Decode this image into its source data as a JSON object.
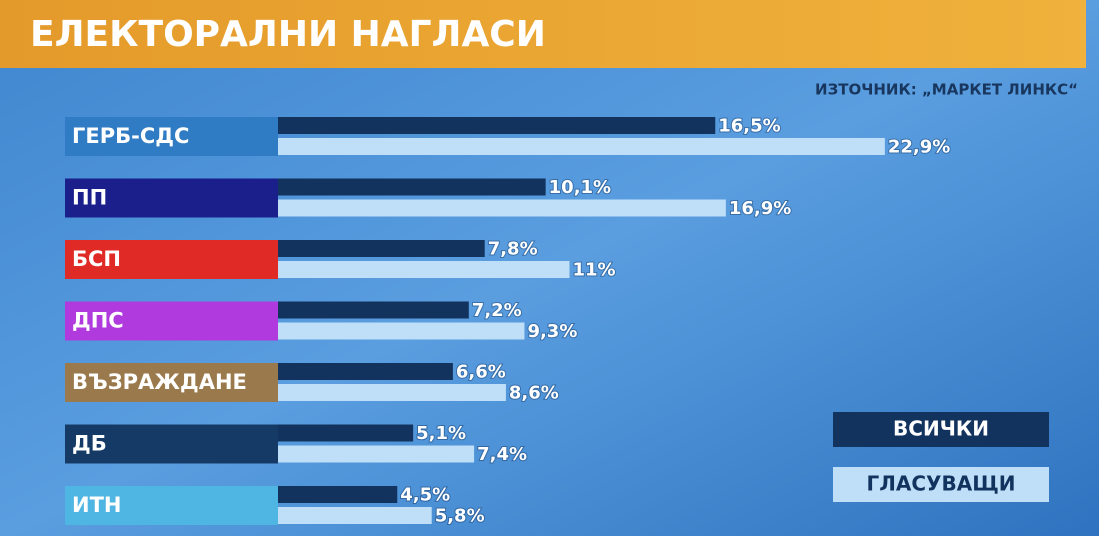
{
  "chart_data": {
    "type": "bar",
    "orientation": "horizontal",
    "title": "ЕЛЕКТОРАЛНИ НАГЛАСИ",
    "source": "ИЗТОЧНИК: „МАРКЕТ ЛИНКС“",
    "categories": [
      "ГЕРБ-СДС",
      "ПП",
      "БСП",
      "ДПС",
      "ВЪЗРАЖДАНЕ",
      "ДБ",
      "ИТН"
    ],
    "category_colors": [
      "#2f7cc4",
      "#1a1f8c",
      "#df2a26",
      "#b03ade",
      "#9a7a4c",
      "#163a66",
      "#4fb5e2"
    ],
    "series": [
      {
        "name": "ВСИЧКИ",
        "color": "#13335f",
        "values": [
          16.5,
          10.1,
          7.8,
          7.2,
          6.6,
          5.1,
          4.5
        ],
        "value_labels": [
          "16,5%",
          "10,1%",
          "7,8%",
          "7,2%",
          "6,6%",
          "5,1%",
          "4,5%"
        ]
      },
      {
        "name": "ГЛАСУВАЩИ",
        "color": "#bfdff8",
        "values": [
          22.9,
          16.9,
          11,
          9.3,
          8.6,
          7.4,
          5.8
        ],
        "value_labels": [
          "22,9%",
          "16,9%",
          "11%",
          "9,3%",
          "8,6%",
          "7,4%",
          "5,8%"
        ]
      }
    ]
  }
}
